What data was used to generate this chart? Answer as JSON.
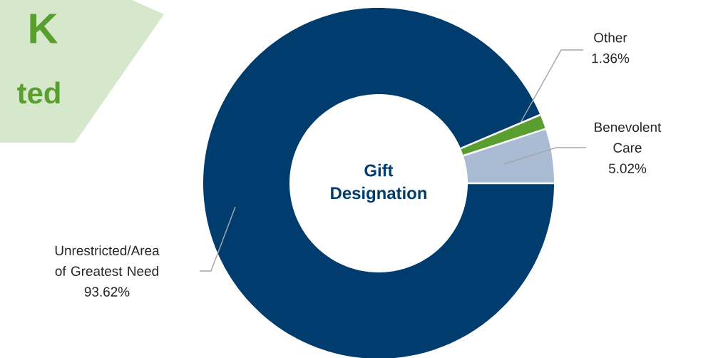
{
  "chart_data": {
    "type": "donut",
    "title": "Gift Designation",
    "categories": [
      "Unrestricted/Area of Greatest Need",
      "Other",
      "Benevolent Care"
    ],
    "values": [
      93.62,
      1.36,
      5.02
    ],
    "value_labels": [
      "93.62%",
      "1.36%",
      "5.02%"
    ],
    "colors": [
      "#003d6e",
      "#5a9e2f",
      "#a9bcd3"
    ],
    "annotations": [
      "K",
      "ted"
    ]
  }
}
